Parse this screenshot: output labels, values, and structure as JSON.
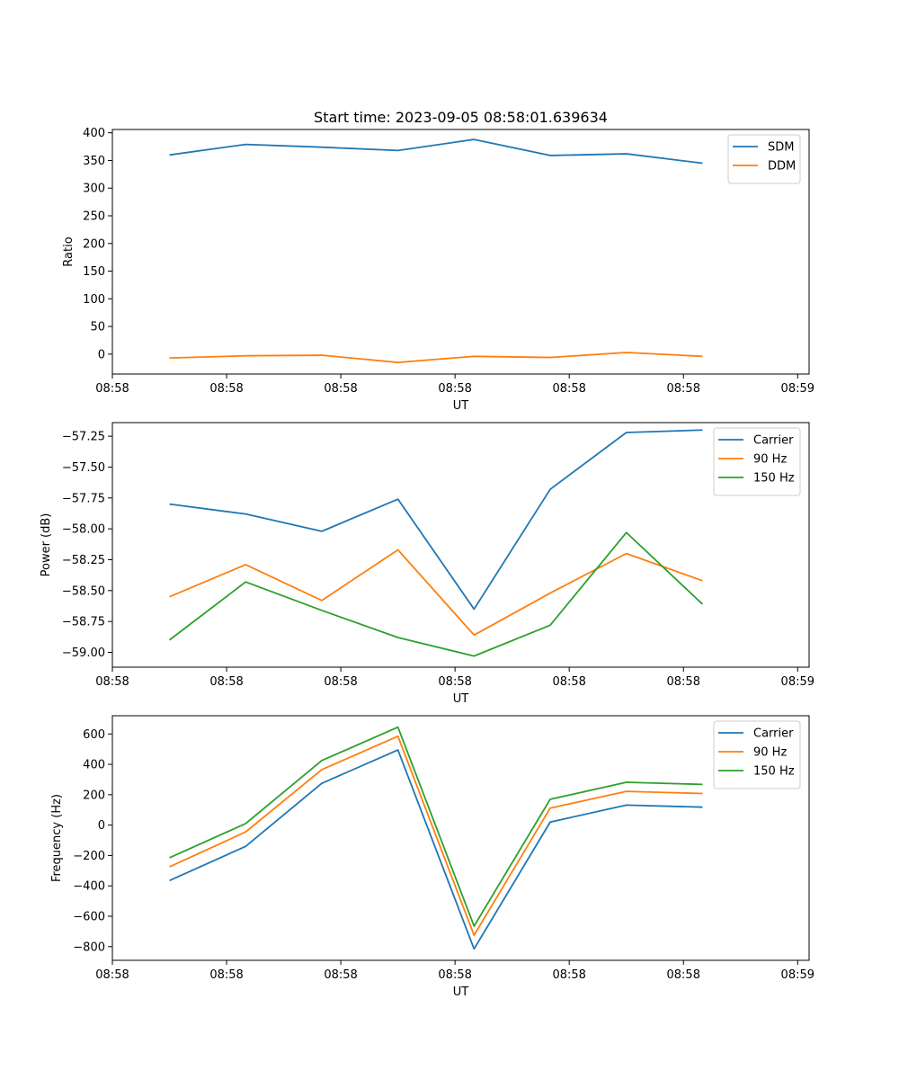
{
  "figure": {
    "title": "Start time: 2023-09-05 08:58:01.639634"
  },
  "chart_data": [
    {
      "type": "line",
      "title": "Start time: 2023-09-05 08:58:01.639634",
      "xlabel": "UT",
      "ylabel": "Ratio",
      "xlim": [
        -0.75,
        8.4
      ],
      "ylim": [
        -36,
        406
      ],
      "x_ticks": [
        -0.75,
        0.75,
        2.25,
        3.75,
        5.25,
        6.75,
        8.25
      ],
      "x_tick_labels": [
        "08:58",
        "08:58",
        "08:58",
        "08:58",
        "08:58",
        "08:58",
        "08:59"
      ],
      "y_ticks": [
        0,
        50,
        100,
        150,
        200,
        250,
        300,
        350,
        400
      ],
      "y_tick_labels": [
        "0",
        "50",
        "100",
        "150",
        "200",
        "250",
        "300",
        "350",
        "400"
      ],
      "legend_position": "top-right",
      "x": [
        0,
        1,
        2,
        3,
        4,
        5,
        6,
        7
      ],
      "series": [
        {
          "name": "SDM",
          "color": "#1f77b4",
          "values": [
            360,
            379,
            374,
            368,
            388,
            359,
            362,
            345
          ]
        },
        {
          "name": "DDM",
          "color": "#ff7f0e",
          "values": [
            -7,
            -3,
            -2,
            -15,
            -4,
            -6,
            3,
            -4
          ]
        }
      ]
    },
    {
      "type": "line",
      "title": "",
      "xlabel": "UT",
      "ylabel": "Power (dB)",
      "xlim": [
        -0.75,
        8.4
      ],
      "ylim": [
        -59.12,
        -57.14
      ],
      "x_ticks": [
        -0.75,
        0.75,
        2.25,
        3.75,
        5.25,
        6.75,
        8.25
      ],
      "x_tick_labels": [
        "08:58",
        "08:58",
        "08:58",
        "08:58",
        "08:58",
        "08:58",
        "08:59"
      ],
      "y_ticks": [
        -59.0,
        -58.75,
        -58.5,
        -58.25,
        -58.0,
        -57.75,
        -57.5,
        -57.25
      ],
      "y_tick_labels": [
        "−59.00",
        "−58.75",
        "−58.50",
        "−58.25",
        "−58.00",
        "−57.75",
        "−57.50",
        "−57.25"
      ],
      "legend_position": "top-right",
      "x": [
        0,
        1,
        2,
        3,
        4,
        5,
        6,
        7
      ],
      "series": [
        {
          "name": "Carrier",
          "color": "#1f77b4",
          "values": [
            -57.8,
            -57.88,
            -58.02,
            -57.76,
            -58.65,
            -57.68,
            -57.22,
            -57.2
          ]
        },
        {
          "name": "90 Hz",
          "color": "#ff7f0e",
          "values": [
            -58.55,
            -58.29,
            -58.58,
            -58.17,
            -58.86,
            -58.52,
            -58.2,
            -58.42
          ]
        },
        {
          "name": "150 Hz",
          "color": "#2ca02c",
          "values": [
            -58.9,
            -58.43,
            -58.66,
            -58.88,
            -59.03,
            -58.78,
            -58.03,
            -58.61
          ]
        }
      ]
    },
    {
      "type": "line",
      "title": "",
      "xlabel": "UT",
      "ylabel": "Frequency (Hz)",
      "xlim": [
        -0.75,
        8.4
      ],
      "ylim": [
        -890,
        720
      ],
      "x_ticks": [
        -0.75,
        0.75,
        2.25,
        3.75,
        5.25,
        6.75,
        8.25
      ],
      "x_tick_labels": [
        "08:58",
        "08:58",
        "08:58",
        "08:58",
        "08:58",
        "08:58",
        "08:59"
      ],
      "y_ticks": [
        -800,
        -600,
        -400,
        -200,
        0,
        200,
        400,
        600
      ],
      "y_tick_labels": [
        "−800",
        "−600",
        "−400",
        "−200",
        "0",
        "200",
        "400",
        "600"
      ],
      "legend_position": "top-right",
      "x": [
        0,
        1,
        2,
        3,
        4,
        5,
        6,
        7
      ],
      "series": [
        {
          "name": "Carrier",
          "color": "#1f77b4",
          "values": [
            -365,
            -140,
            275,
            495,
            -815,
            20,
            132,
            118
          ]
        },
        {
          "name": "90 Hz",
          "color": "#ff7f0e",
          "values": [
            -275,
            -45,
            365,
            585,
            -725,
            112,
            222,
            208
          ]
        },
        {
          "name": "150 Hz",
          "color": "#2ca02c",
          "values": [
            -215,
            10,
            425,
            645,
            -665,
            170,
            282,
            268
          ]
        }
      ]
    }
  ]
}
